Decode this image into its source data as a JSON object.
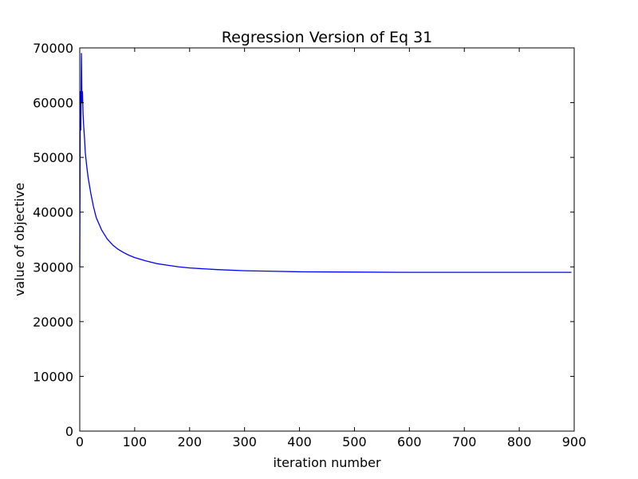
{
  "chart_data": {
    "type": "line",
    "title": "Regression Version of Eq 31",
    "xlabel": "iteration number",
    "ylabel": "value of objective",
    "xlim": [
      0,
      900
    ],
    "ylim": [
      0,
      70000
    ],
    "xticks": [
      0,
      100,
      200,
      300,
      400,
      500,
      600,
      700,
      800,
      900
    ],
    "yticks": [
      0,
      10000,
      20000,
      30000,
      40000,
      50000,
      60000,
      70000
    ],
    "grid": false,
    "legend": "none",
    "series": [
      {
        "color": "#0000ff",
        "x": [
          0,
          1,
          2,
          3,
          4,
          5,
          6,
          7,
          8,
          9,
          10,
          12,
          15,
          20,
          25,
          30,
          40,
          50,
          60,
          70,
          80,
          90,
          100,
          120,
          140,
          160,
          180,
          200,
          250,
          300,
          350,
          400,
          500,
          600,
          700,
          800,
          895
        ],
        "y": [
          30000,
          62000,
          55000,
          69000,
          60000,
          62000,
          58000,
          56000,
          54500,
          53000,
          51000,
          49000,
          46500,
          43500,
          41000,
          39000,
          36700,
          35100,
          34000,
          33200,
          32600,
          32100,
          31700,
          31100,
          30600,
          30300,
          30000,
          29800,
          29500,
          29300,
          29200,
          29100,
          29050,
          29000,
          29000,
          29000,
          29000
        ]
      }
    ]
  }
}
